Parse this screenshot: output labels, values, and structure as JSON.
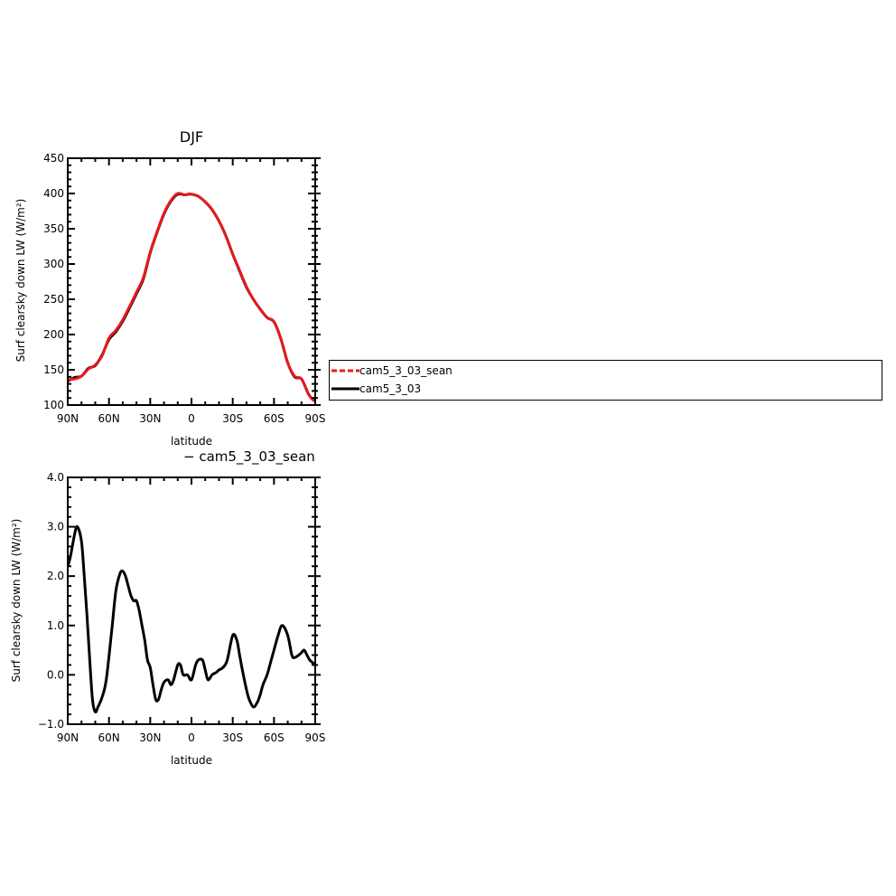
{
  "chart_data": [
    {
      "type": "line",
      "title": "DJF",
      "xlabel": "latitude",
      "ylabel": "Surf clearsky down LW (W/m²)",
      "xlim": [
        90,
        -90
      ],
      "ylim": [
        100,
        450
      ],
      "x_ticks": [
        {
          "value": 90,
          "label": "90N"
        },
        {
          "value": 60,
          "label": "60N"
        },
        {
          "value": 30,
          "label": "30N"
        },
        {
          "value": 0,
          "label": "0"
        },
        {
          "value": -30,
          "label": "30S"
        },
        {
          "value": -60,
          "label": "60S"
        },
        {
          "value": -90,
          "label": "90S"
        }
      ],
      "y_ticks": [
        100,
        150,
        200,
        250,
        300,
        350,
        400,
        450
      ],
      "grid": false,
      "x": [
        90,
        85,
        80,
        75,
        70,
        65,
        60,
        55,
        50,
        45,
        40,
        35,
        30,
        25,
        20,
        15,
        10,
        5,
        2,
        0,
        -5,
        -10,
        -15,
        -20,
        -25,
        -30,
        -35,
        -40,
        -45,
        -50,
        -55,
        -60,
        -65,
        -70,
        -75,
        -80,
        -85,
        -88,
        -90
      ],
      "series": [
        {
          "name": "cam5_3_03_sean",
          "color": "#e8191e",
          "dash": "dashed",
          "values": [
            136,
            137,
            141,
            151,
            157,
            170,
            195,
            206,
            221,
            240,
            260,
            281,
            317,
            346,
            372,
            390,
            400,
            398,
            399,
            399,
            396,
            388,
            377,
            361,
            340,
            314,
            291,
            268,
            250,
            236,
            224,
            218,
            194,
            160,
            141,
            137,
            116,
            108,
            106
          ]
        },
        {
          "name": "cam5_3_03",
          "color": "#000000",
          "dash": "solid",
          "values": [
            134,
            139,
            141,
            152,
            156,
            171,
            193,
            204,
            219,
            238,
            258,
            279,
            316,
            345,
            371,
            389,
            399,
            398,
            399,
            399,
            396,
            388,
            377,
            361,
            340,
            314,
            290,
            267,
            250,
            236,
            224,
            218,
            194,
            160,
            140,
            137,
            116,
            108,
            106
          ]
        }
      ],
      "legend": {
        "placement": "right",
        "entries": [
          {
            "label": "cam5_3_03_sean",
            "color": "#e8191e",
            "style": "dashed"
          },
          {
            "label": "cam5_3_03",
            "color": "#000000",
            "style": "solid"
          }
        ]
      }
    },
    {
      "type": "line",
      "title": "− cam5_3_03_sean",
      "xlabel": "latitude",
      "ylabel": "Surf clearsky down LW (W/m²)",
      "xlim": [
        90,
        -90
      ],
      "ylim": [
        -1.0,
        4.0
      ],
      "x_ticks": [
        {
          "value": 90,
          "label": "90N"
        },
        {
          "value": 60,
          "label": "60N"
        },
        {
          "value": 30,
          "label": "30N"
        },
        {
          "value": 0,
          "label": "0"
        },
        {
          "value": -30,
          "label": "30S"
        },
        {
          "value": -60,
          "label": "60S"
        },
        {
          "value": -90,
          "label": "90S"
        }
      ],
      "y_ticks": [
        {
          "value": -1.0,
          "label": "−1.0"
        },
        {
          "value": 0.0,
          "label": "0.0"
        },
        {
          "value": 1.0,
          "label": "1.0"
        },
        {
          "value": 2.0,
          "label": "2.0"
        },
        {
          "value": 3.0,
          "label": "3.0"
        },
        {
          "value": 4.0,
          "label": "4.0"
        }
      ],
      "grid": false,
      "x": [
        90,
        88,
        85,
        83,
        80,
        78,
        76,
        74,
        72,
        70,
        68,
        65,
        62,
        58,
        55,
        52,
        50,
        48,
        46,
        44,
        42,
        40,
        38,
        36,
        34,
        32,
        30,
        28,
        26,
        24,
        22,
        20,
        17,
        15,
        13,
        10,
        8,
        6,
        3,
        0,
        -3,
        -5,
        -8,
        -10,
        -12,
        -15,
        -18,
        -20,
        -23,
        -26,
        -30,
        -33,
        -35,
        -37,
        -40,
        -42,
        -45,
        -48,
        -50,
        -52,
        -55,
        -58,
        -60,
        -63,
        -66,
        -70,
        -73,
        -75,
        -78,
        -80,
        -82,
        -84,
        -86,
        -88,
        -90
      ],
      "series": [
        {
          "name": "",
          "color": "#000000",
          "dash": "solid",
          "values": [
            2.2,
            2.4,
            2.85,
            3.0,
            2.7,
            2.0,
            1.2,
            0.3,
            -0.5,
            -0.75,
            -0.65,
            -0.45,
            -0.1,
            0.9,
            1.7,
            2.05,
            2.1,
            2.0,
            1.8,
            1.6,
            1.5,
            1.5,
            1.3,
            1.0,
            0.7,
            0.3,
            0.15,
            -0.2,
            -0.5,
            -0.5,
            -0.3,
            -0.15,
            -0.1,
            -0.2,
            -0.1,
            0.2,
            0.2,
            0.0,
            0.0,
            -0.1,
            0.2,
            0.3,
            0.3,
            0.1,
            -0.1,
            0.0,
            0.05,
            0.1,
            0.15,
            0.3,
            0.8,
            0.7,
            0.4,
            0.1,
            -0.3,
            -0.5,
            -0.65,
            -0.55,
            -0.4,
            -0.2,
            0.0,
            0.3,
            0.5,
            0.8,
            1.0,
            0.8,
            0.4,
            0.35,
            0.4,
            0.45,
            0.5,
            0.4,
            0.3,
            0.25,
            0.2
          ]
        }
      ]
    }
  ]
}
